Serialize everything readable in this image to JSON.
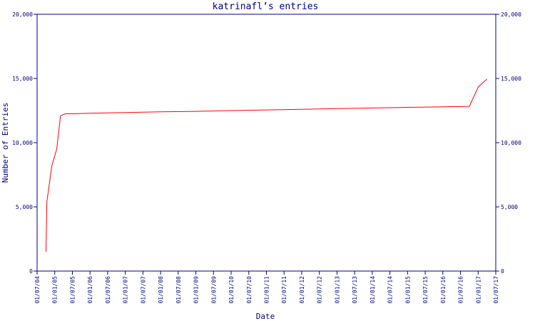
{
  "chart_data": {
    "type": "line",
    "title": "katrinafl’s entries",
    "xlabel": "Date",
    "ylabel": "Number of Entries",
    "x_ticks": [
      "01/07/04",
      "01/01/05",
      "01/07/05",
      "01/01/06",
      "01/07/06",
      "01/01/07",
      "01/07/07",
      "01/01/08",
      "01/07/08",
      "01/01/09",
      "01/07/09",
      "01/01/10",
      "01/07/10",
      "01/01/11",
      "01/07/11",
      "01/01/12",
      "01/07/12",
      "01/01/13",
      "01/07/13",
      "01/01/14",
      "01/07/14",
      "01/01/15",
      "01/07/15",
      "01/01/16",
      "01/07/16",
      "01/01/17",
      "01/07/17"
    ],
    "y_ticks": [
      "0",
      "5,000",
      "10,000",
      "15,000",
      "20,000"
    ],
    "y_tick_values": [
      0,
      5000,
      10000,
      15000,
      20000
    ],
    "ylim": [
      0,
      20000
    ],
    "xlim": [
      "2004-07-01",
      "2017-07-01"
    ],
    "grid": false,
    "line_color": "#ff0000",
    "axis_color": "#000080",
    "series": [
      {
        "points": [
          {
            "x": "2004-10-01",
            "y": 1500
          },
          {
            "x": "2004-10-10",
            "y": 5400
          },
          {
            "x": "2004-12-01",
            "y": 8200
          },
          {
            "x": "2005-01-20",
            "y": 9500
          },
          {
            "x": "2005-03-01",
            "y": 12100
          },
          {
            "x": "2005-04-20",
            "y": 12250
          },
          {
            "x": "2005-07-01",
            "y": 12250
          },
          {
            "x": "2006-01-01",
            "y": 12290
          },
          {
            "x": "2007-01-01",
            "y": 12350
          },
          {
            "x": "2008-01-01",
            "y": 12400
          },
          {
            "x": "2009-01-01",
            "y": 12440
          },
          {
            "x": "2010-01-01",
            "y": 12500
          },
          {
            "x": "2011-01-01",
            "y": 12550
          },
          {
            "x": "2012-01-01",
            "y": 12600
          },
          {
            "x": "2013-01-01",
            "y": 12650
          },
          {
            "x": "2014-01-01",
            "y": 12700
          },
          {
            "x": "2015-01-01",
            "y": 12750
          },
          {
            "x": "2016-01-01",
            "y": 12790
          },
          {
            "x": "2016-10-01",
            "y": 12830
          },
          {
            "x": "2017-01-01",
            "y": 14350
          },
          {
            "x": "2017-04-01",
            "y": 14950
          }
        ]
      }
    ]
  }
}
